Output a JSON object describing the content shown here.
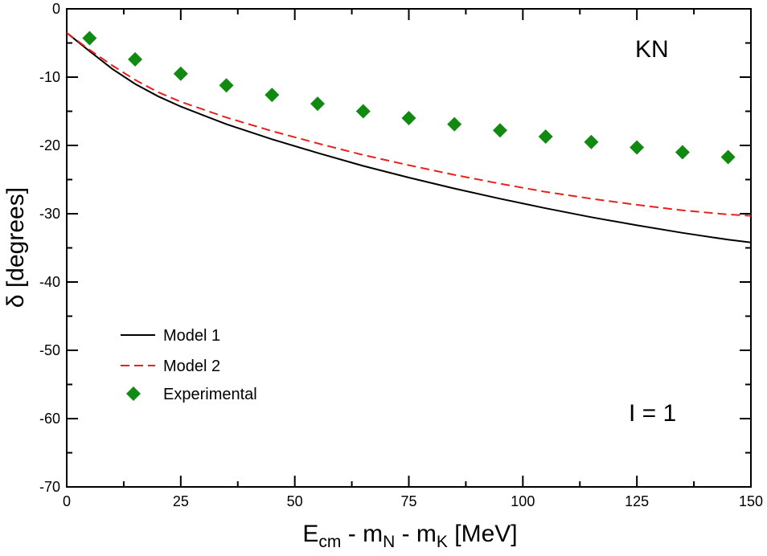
{
  "chart_data": {
    "type": "line",
    "title": "",
    "xlabel_parts": {
      "main": "E",
      "sub_cm": "cm",
      "mid1": " - m",
      "sub_N": "N",
      "mid2": " - m",
      "sub_K": "K",
      "tail": " [MeV]"
    },
    "ylabel": "δ [degrees]",
    "xlim": [
      0,
      150
    ],
    "ylim": [
      -70,
      0
    ],
    "xticks": [
      0,
      25,
      50,
      75,
      100,
      125,
      150
    ],
    "yticks": [
      0,
      -10,
      -20,
      -30,
      -40,
      -50,
      -60,
      -70
    ],
    "grid": false,
    "annotations": [
      {
        "text": "KN",
        "position": "top-right"
      },
      {
        "text": "I = 1",
        "position": "bottom-right"
      }
    ],
    "legend_position": "lower-left",
    "series": [
      {
        "name": "Model 1",
        "style": "solid",
        "color": "#000000",
        "x": [
          0,
          5,
          10,
          15,
          20,
          25,
          35,
          45,
          55,
          65,
          75,
          85,
          95,
          105,
          115,
          125,
          135,
          145,
          150
        ],
        "y": [
          -3.5,
          -6.2,
          -8.8,
          -11.0,
          -12.8,
          -14.3,
          -16.9,
          -19.1,
          -21.1,
          -23.0,
          -24.7,
          -26.3,
          -27.8,
          -29.2,
          -30.5,
          -31.7,
          -32.8,
          -33.8,
          -34.2
        ]
      },
      {
        "name": "Model 2",
        "style": "dashed",
        "color": "#e8201c",
        "x": [
          0,
          5,
          10,
          15,
          20,
          25,
          35,
          45,
          55,
          65,
          75,
          85,
          95,
          105,
          115,
          125,
          135,
          145,
          150
        ],
        "y": [
          -3.5,
          -6.0,
          -8.3,
          -10.4,
          -12.2,
          -13.6,
          -15.9,
          -17.9,
          -19.7,
          -21.4,
          -22.9,
          -24.3,
          -25.6,
          -26.8,
          -27.8,
          -28.7,
          -29.5,
          -30.1,
          -30.3
        ]
      },
      {
        "name": "Experimental",
        "style": "markers",
        "marker": "diamond",
        "color": "#118a11",
        "x": [
          5,
          15,
          25,
          35,
          45,
          55,
          65,
          75,
          85,
          95,
          105,
          115,
          125,
          135,
          145
        ],
        "y": [
          -4.3,
          -7.4,
          -9.5,
          -11.2,
          -12.6,
          -13.9,
          -15.0,
          -16.0,
          -16.9,
          -17.8,
          -18.7,
          -19.5,
          -20.3,
          -21.0,
          -21.7
        ]
      }
    ]
  }
}
